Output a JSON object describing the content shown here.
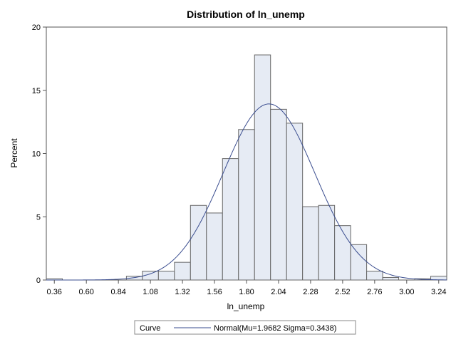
{
  "chart_data": {
    "type": "bar",
    "title": "Distribution of ln_unemp",
    "xlabel": "ln_unemp",
    "ylabel": "Percent",
    "xlim": [
      0.3,
      3.3
    ],
    "ylim": [
      0,
      20
    ],
    "bin_width": 0.12,
    "x_ticks": [
      "0.36",
      "0.60",
      "0.84",
      "1.08",
      "1.32",
      "1.56",
      "1.80",
      "2.04",
      "2.28",
      "2.52",
      "2.76",
      "3.00",
      "3.24"
    ],
    "y_ticks": [
      "0",
      "5",
      "10",
      "15",
      "20"
    ],
    "bins": [
      {
        "x": 0.36,
        "value": 0.1
      },
      {
        "x": 0.48,
        "value": 0
      },
      {
        "x": 0.6,
        "value": 0
      },
      {
        "x": 0.72,
        "value": 0
      },
      {
        "x": 0.84,
        "value": 0
      },
      {
        "x": 0.96,
        "value": 0.3
      },
      {
        "x": 1.08,
        "value": 0.7
      },
      {
        "x": 1.2,
        "value": 0.7
      },
      {
        "x": 1.32,
        "value": 1.4
      },
      {
        "x": 1.44,
        "value": 5.9
      },
      {
        "x": 1.56,
        "value": 5.3
      },
      {
        "x": 1.68,
        "value": 9.6
      },
      {
        "x": 1.8,
        "value": 11.9
      },
      {
        "x": 1.92,
        "value": 17.8
      },
      {
        "x": 2.04,
        "value": 13.5
      },
      {
        "x": 2.16,
        "value": 12.4
      },
      {
        "x": 2.28,
        "value": 5.8
      },
      {
        "x": 2.4,
        "value": 5.9
      },
      {
        "x": 2.52,
        "value": 4.3
      },
      {
        "x": 2.64,
        "value": 2.8
      },
      {
        "x": 2.76,
        "value": 0.7
      },
      {
        "x": 2.88,
        "value": 0.2
      },
      {
        "x": 3.0,
        "value": 0
      },
      {
        "x": 3.12,
        "value": 0.1
      },
      {
        "x": 3.24,
        "value": 0.3
      }
    ],
    "curve": {
      "type": "normal",
      "mu": 1.9682,
      "sigma": 0.3438
    },
    "legend": {
      "header": "Curve",
      "entry": "Normal(Mu=1.9682 Sigma=0.3438)",
      "position": "bottom"
    },
    "colors": {
      "bar_fill": "#e6ebf4",
      "bar_stroke": "#666666",
      "curve": "#3a4d8f",
      "axis": "#555555"
    }
  }
}
